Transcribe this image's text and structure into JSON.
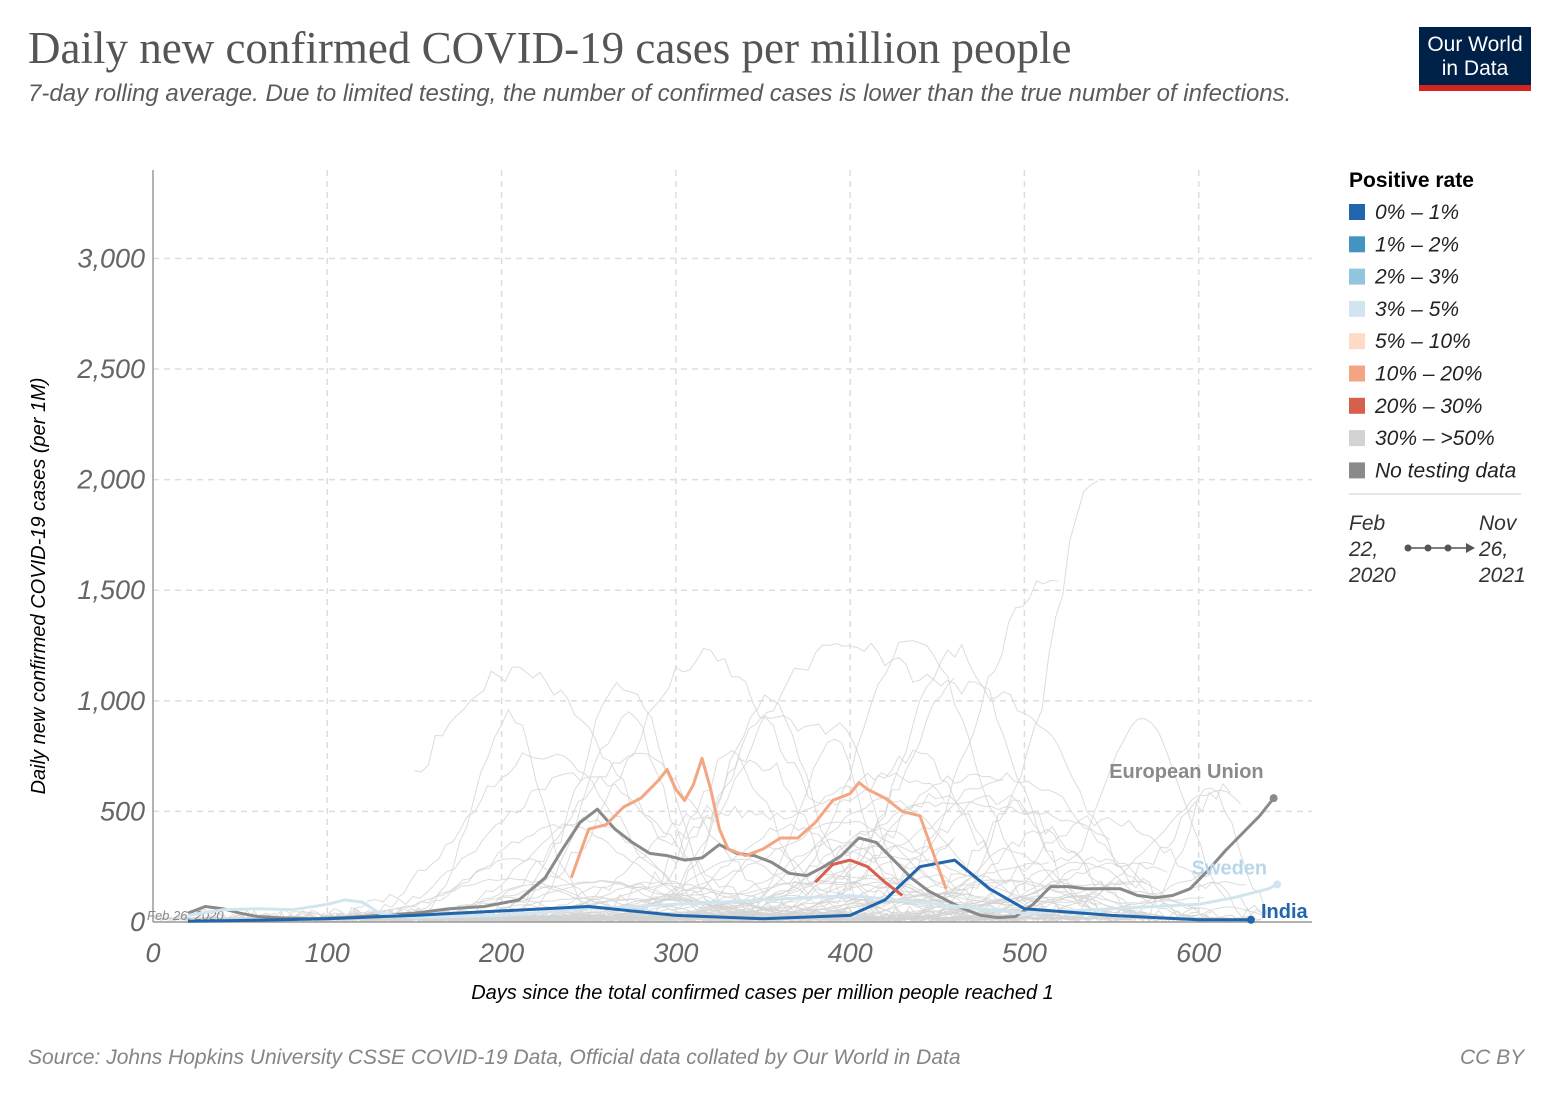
{
  "header": {
    "title": "Daily new confirmed COVID-19 cases per million people",
    "subtitle": "7-day rolling average. Due to limited testing, the number of confirmed cases is lower than the true number of infections.",
    "logo_line1": "Our World",
    "logo_line2": "in Data"
  },
  "footer": {
    "source": "Source: Johns Hopkins University CSSE COVID-19 Data, Official data collated by Our World in Data",
    "license": "CC BY"
  },
  "colors": {
    "background_lines": "#d3d3d3",
    "eu": "#8a8a8a",
    "india": "#2166ac",
    "sweden": "#d1e5f0"
  },
  "chart_data": {
    "type": "line",
    "title": "Daily new confirmed COVID-19 cases per million people",
    "xlabel": "Days since the total confirmed cases per million people reached 1",
    "ylabel": "Daily new confirmed COVID-19 cases (per 1M)",
    "xlim": [
      0,
      665
    ],
    "ylim": [
      0,
      3400
    ],
    "x_ticks": [
      0,
      100,
      200,
      300,
      400,
      500,
      600
    ],
    "x_tick_labels": [
      "0",
      "100",
      "200",
      "300",
      "400",
      "500",
      "600"
    ],
    "y_ticks": [
      0,
      500,
      1000,
      1500,
      2000,
      2500,
      3000
    ],
    "y_tick_labels": [
      "0",
      "500",
      "1,000",
      "1,500",
      "2,000",
      "2,500",
      "3,000"
    ],
    "grid": true,
    "start_annotation": "Feb 26, 2020",
    "legend": {
      "title": "Positive rate",
      "placement": "right",
      "entries": [
        {
          "label": "0% – 1%",
          "color": "#2166ac"
        },
        {
          "label": "1% – 2%",
          "color": "#4393c3"
        },
        {
          "label": "2% – 3%",
          "color": "#92c5de"
        },
        {
          "label": "3% – 5%",
          "color": "#d1e5f0"
        },
        {
          "label": "5% – 10%",
          "color": "#fddbc7"
        },
        {
          "label": "10% – 20%",
          "color": "#f4a582"
        },
        {
          "label": "20% – 30%",
          "color": "#d6604d"
        },
        {
          "label": "30% – >50%",
          "color": "#d3d3d3"
        },
        {
          "label": "No testing data",
          "color": "#8a8a8a"
        }
      ]
    },
    "timeline": {
      "start_line1": "Feb",
      "start_line2": "22,",
      "start_line3": "2020",
      "end_line1": "Nov",
      "end_line2": "26,",
      "end_line3": "2021"
    },
    "series": [
      {
        "name": "European Union",
        "color": "#8a8a8a",
        "x": [
          20,
          30,
          40,
          50,
          60,
          70,
          90,
          110,
          130,
          150,
          170,
          190,
          210,
          225,
          235,
          245,
          255,
          265,
          275,
          285,
          295,
          305,
          315,
          325,
          335,
          345,
          355,
          365,
          375,
          385,
          395,
          405,
          415,
          425,
          435,
          445,
          455,
          465,
          475,
          485,
          495,
          505,
          515,
          525,
          535,
          545,
          555,
          565,
          575,
          585,
          595,
          605,
          615,
          625,
          635,
          643
        ],
        "y": [
          40,
          70,
          60,
          40,
          25,
          20,
          15,
          20,
          30,
          40,
          60,
          70,
          100,
          200,
          330,
          450,
          510,
          420,
          360,
          310,
          300,
          280,
          290,
          350,
          310,
          300,
          270,
          220,
          210,
          250,
          300,
          380,
          360,
          280,
          200,
          140,
          100,
          60,
          30,
          20,
          25,
          80,
          160,
          160,
          150,
          150,
          150,
          120,
          110,
          120,
          150,
          230,
          320,
          400,
          480,
          560
        ]
      },
      {
        "name": "Sweden",
        "color": "#d1e5f0",
        "x": [
          20,
          40,
          60,
          80,
          100,
          110,
          120,
          130,
          150,
          200,
          250,
          300,
          350,
          400,
          450,
          500,
          550,
          600,
          620,
          640,
          645
        ],
        "y": [
          30,
          55,
          60,
          55,
          80,
          100,
          90,
          40,
          20,
          30,
          60,
          80,
          100,
          120,
          80,
          40,
          60,
          80,
          110,
          150,
          170
        ]
      },
      {
        "name": "India",
        "color": "#2166ac",
        "x": [
          20,
          60,
          100,
          150,
          200,
          250,
          300,
          350,
          400,
          420,
          440,
          460,
          480,
          500,
          550,
          600,
          630
        ],
        "y": [
          3,
          8,
          15,
          30,
          50,
          70,
          30,
          15,
          30,
          100,
          250,
          280,
          150,
          60,
          30,
          10,
          10
        ]
      },
      {
        "name": "",
        "color": "#f4a582",
        "x": [
          240,
          250,
          260,
          270,
          280,
          290,
          295,
          300,
          305,
          310,
          315,
          320,
          325,
          330,
          340,
          350,
          360,
          370,
          380,
          390,
          400,
          405,
          410,
          420,
          430,
          440,
          450,
          455
        ],
        "y": [
          200,
          420,
          440,
          520,
          560,
          640,
          690,
          600,
          550,
          620,
          740,
          600,
          420,
          330,
          300,
          330,
          380,
          380,
          450,
          550,
          580,
          630,
          600,
          560,
          500,
          480,
          260,
          150
        ]
      },
      {
        "name": "",
        "color": "#d6604d",
        "x": [
          380,
          390,
          400,
          410,
          420,
          430
        ],
        "y": [
          180,
          260,
          280,
          250,
          180,
          120
        ]
      }
    ]
  }
}
